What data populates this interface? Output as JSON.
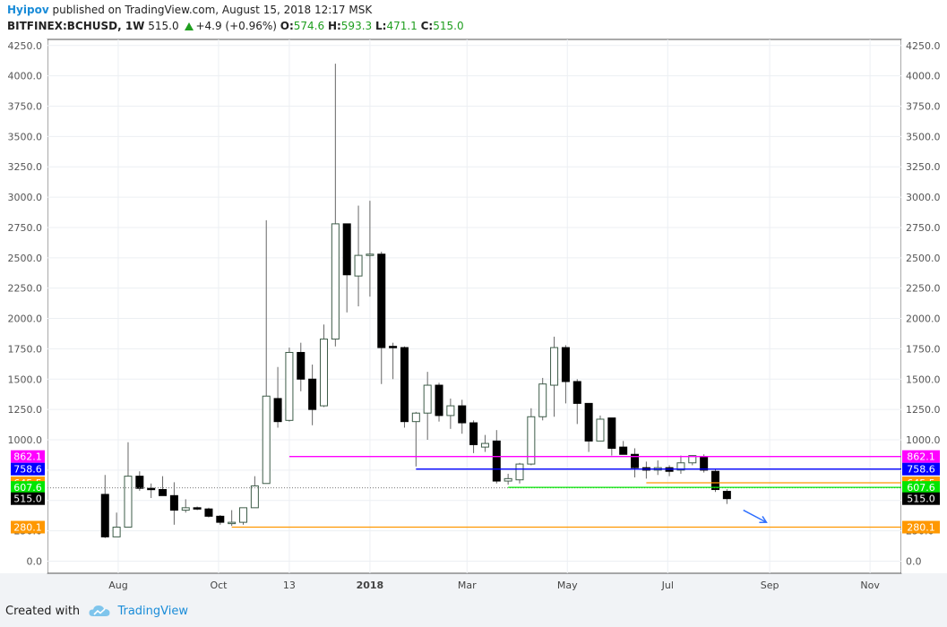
{
  "header": {
    "user": "Hyipov",
    "published": "published on TradingView.com, August 15, 2018 12:17 MSK",
    "symbol": "BITFINEX:BCHUSD, 1W",
    "last": "515.0",
    "change": "+4.9 (+0.96%)",
    "o_label": "O:",
    "o_value": "574.6",
    "h_label": "H:",
    "h_value": "593.3",
    "l_label": "L:",
    "l_value": "471.1",
    "c_label": "C:",
    "c_value": "515.0"
  },
  "footer": {
    "created_with": "Created with",
    "brand": "TradingView"
  },
  "colors": {
    "up_fill": "#ffffff",
    "down_fill": "#000000",
    "candle_border": "#3d5c48",
    "magenta": "#ff00ff",
    "blue": "#0000ff",
    "orange": "#ff9800",
    "green": "#00e600",
    "black_label": "#000000",
    "arrow": "#2f6fff"
  },
  "chart_data": {
    "type": "candlestick",
    "ylim": [
      -100,
      4300
    ],
    "yticks": [
      "0.0",
      "250.0",
      "500.0",
      "750.0",
      "1000.0",
      "1250.0",
      "1500.0",
      "1750.0",
      "2000.0",
      "2250.0",
      "2500.0",
      "2750.0",
      "3000.0",
      "3250.0",
      "3500.0",
      "3750.0",
      "4000.0",
      "4250.0"
    ],
    "ytick_values": [
      0,
      250,
      500,
      750,
      1000,
      1250,
      1500,
      1750,
      2000,
      2250,
      2500,
      2750,
      3000,
      3250,
      3500,
      3750,
      4000,
      4250
    ],
    "xticks": [
      {
        "label": "Aug",
        "date": "2017-08-01",
        "bold": false
      },
      {
        "label": "Oct",
        "date": "2017-10-01",
        "bold": false
      },
      {
        "label": "13",
        "date": "2017-11-13",
        "bold": false
      },
      {
        "label": "2018",
        "date": "2018-01-01",
        "bold": true
      },
      {
        "label": "Mar",
        "date": "2018-03-01",
        "bold": false
      },
      {
        "label": "May",
        "date": "2018-05-01",
        "bold": false
      },
      {
        "label": "Jul",
        "date": "2018-07-01",
        "bold": false
      },
      {
        "label": "Sep",
        "date": "2018-09-01",
        "bold": false
      },
      {
        "label": "Nov",
        "date": "2018-11-01",
        "bold": false
      }
    ],
    "x_range": [
      "2017-06-19",
      "2018-11-20"
    ],
    "candles": [
      {
        "date": "2017-07-24",
        "o": 550,
        "h": 710,
        "l": 190,
        "c": 200
      },
      {
        "date": "2017-07-31",
        "o": 200,
        "h": 400,
        "l": 200,
        "c": 280
      },
      {
        "date": "2017-08-07",
        "o": 280,
        "h": 980,
        "l": 280,
        "c": 700
      },
      {
        "date": "2017-08-14",
        "o": 700,
        "h": 740,
        "l": 580,
        "c": 600
      },
      {
        "date": "2017-08-21",
        "o": 600,
        "h": 640,
        "l": 520,
        "c": 590
      },
      {
        "date": "2017-08-28",
        "o": 590,
        "h": 700,
        "l": 560,
        "c": 540
      },
      {
        "date": "2017-09-04",
        "o": 540,
        "h": 650,
        "l": 300,
        "c": 420
      },
      {
        "date": "2017-09-11",
        "o": 420,
        "h": 510,
        "l": 400,
        "c": 440
      },
      {
        "date": "2017-09-18",
        "o": 440,
        "h": 450,
        "l": 420,
        "c": 430
      },
      {
        "date": "2017-09-25",
        "o": 430,
        "h": 440,
        "l": 360,
        "c": 370
      },
      {
        "date": "2017-10-02",
        "o": 370,
        "h": 380,
        "l": 300,
        "c": 320
      },
      {
        "date": "2017-10-09",
        "o": 310,
        "h": 420,
        "l": 290,
        "c": 320
      },
      {
        "date": "2017-10-16",
        "o": 320,
        "h": 440,
        "l": 300,
        "c": 440
      },
      {
        "date": "2017-10-23",
        "o": 440,
        "h": 700,
        "l": 440,
        "c": 620
      },
      {
        "date": "2017-10-30",
        "o": 640,
        "h": 2810,
        "l": 640,
        "c": 1360
      },
      {
        "date": "2017-11-06",
        "o": 1340,
        "h": 1600,
        "l": 1100,
        "c": 1150
      },
      {
        "date": "2017-11-13",
        "o": 1160,
        "h": 1760,
        "l": 1150,
        "c": 1720
      },
      {
        "date": "2017-11-20",
        "o": 1720,
        "h": 1800,
        "l": 1400,
        "c": 1500
      },
      {
        "date": "2017-11-27",
        "o": 1500,
        "h": 1620,
        "l": 1120,
        "c": 1250
      },
      {
        "date": "2017-12-04",
        "o": 1280,
        "h": 1950,
        "l": 1270,
        "c": 1830
      },
      {
        "date": "2017-12-11",
        "o": 1830,
        "h": 4100,
        "l": 1770,
        "c": 2780
      },
      {
        "date": "2017-12-18",
        "o": 2780,
        "h": 2780,
        "l": 2050,
        "c": 2360
      },
      {
        "date": "2017-12-25",
        "o": 2350,
        "h": 2930,
        "l": 2100,
        "c": 2520
      },
      {
        "date": "2018-01-01",
        "o": 2520,
        "h": 2970,
        "l": 2180,
        "c": 2530
      },
      {
        "date": "2018-01-08",
        "o": 2530,
        "h": 2550,
        "l": 1460,
        "c": 1760
      },
      {
        "date": "2018-01-15",
        "o": 1770,
        "h": 1800,
        "l": 1500,
        "c": 1760
      },
      {
        "date": "2018-01-22",
        "o": 1760,
        "h": 1770,
        "l": 1100,
        "c": 1150
      },
      {
        "date": "2018-01-29",
        "o": 1150,
        "h": 1230,
        "l": 780,
        "c": 1220
      },
      {
        "date": "2018-02-05",
        "o": 1220,
        "h": 1560,
        "l": 1000,
        "c": 1450
      },
      {
        "date": "2018-02-12",
        "o": 1450,
        "h": 1470,
        "l": 1150,
        "c": 1200
      },
      {
        "date": "2018-02-19",
        "o": 1200,
        "h": 1340,
        "l": 1090,
        "c": 1280
      },
      {
        "date": "2018-02-26",
        "o": 1280,
        "h": 1330,
        "l": 1050,
        "c": 1140
      },
      {
        "date": "2018-03-05",
        "o": 1140,
        "h": 1160,
        "l": 890,
        "c": 960
      },
      {
        "date": "2018-03-12",
        "o": 940,
        "h": 1040,
        "l": 900,
        "c": 970
      },
      {
        "date": "2018-03-19",
        "o": 990,
        "h": 1080,
        "l": 640,
        "c": 660
      },
      {
        "date": "2018-03-26",
        "o": 660,
        "h": 720,
        "l": 630,
        "c": 680
      },
      {
        "date": "2018-04-02",
        "o": 670,
        "h": 810,
        "l": 640,
        "c": 800
      },
      {
        "date": "2018-04-09",
        "o": 800,
        "h": 1260,
        "l": 790,
        "c": 1190
      },
      {
        "date": "2018-04-16",
        "o": 1190,
        "h": 1510,
        "l": 1160,
        "c": 1460
      },
      {
        "date": "2018-04-23",
        "o": 1450,
        "h": 1850,
        "l": 1190,
        "c": 1760
      },
      {
        "date": "2018-04-30",
        "o": 1760,
        "h": 1780,
        "l": 1300,
        "c": 1480
      },
      {
        "date": "2018-05-07",
        "o": 1480,
        "h": 1500,
        "l": 1130,
        "c": 1300
      },
      {
        "date": "2018-05-14",
        "o": 1300,
        "h": 1300,
        "l": 900,
        "c": 990
      },
      {
        "date": "2018-05-21",
        "o": 990,
        "h": 1200,
        "l": 990,
        "c": 1170
      },
      {
        "date": "2018-05-28",
        "o": 1180,
        "h": 1180,
        "l": 870,
        "c": 930
      },
      {
        "date": "2018-06-04",
        "o": 940,
        "h": 990,
        "l": 880,
        "c": 880
      },
      {
        "date": "2018-06-11",
        "o": 880,
        "h": 930,
        "l": 690,
        "c": 770
      },
      {
        "date": "2018-06-18",
        "o": 770,
        "h": 820,
        "l": 680,
        "c": 750
      },
      {
        "date": "2018-06-25",
        "o": 750,
        "h": 830,
        "l": 710,
        "c": 770
      },
      {
        "date": "2018-07-02",
        "o": 770,
        "h": 790,
        "l": 700,
        "c": 740
      },
      {
        "date": "2018-07-09",
        "o": 750,
        "h": 870,
        "l": 720,
        "c": 810
      },
      {
        "date": "2018-07-16",
        "o": 810,
        "h": 860,
        "l": 790,
        "c": 870
      },
      {
        "date": "2018-07-23",
        "o": 860,
        "h": 880,
        "l": 730,
        "c": 750
      },
      {
        "date": "2018-07-30",
        "o": 740,
        "h": 760,
        "l": 570,
        "c": 590
      },
      {
        "date": "2018-08-06",
        "o": 575,
        "h": 593,
        "l": 471,
        "c": 515
      }
    ],
    "levels": [
      {
        "value": 862.1,
        "label": "862.1",
        "color": "#ff00ff",
        "from": "2017-11-13"
      },
      {
        "value": 758.6,
        "label": "758.6",
        "color": "#0000ff",
        "from": "2018-01-29"
      },
      {
        "value": 645.5,
        "label": "645.5",
        "color": "#ff9800",
        "from": "2018-06-18"
      },
      {
        "value": 607.6,
        "label": "607.6",
        "color": "#00e600",
        "from": "2018-03-26"
      },
      {
        "value": 280.1,
        "label": "280.1",
        "color": "#ff9800",
        "from": "2017-10-09"
      }
    ],
    "last_price": {
      "value": 515.0,
      "label": "515.0"
    },
    "arrow": {
      "from_date": "2018-08-16",
      "from_value": 420,
      "to_date": "2018-08-30",
      "to_value": 320
    }
  }
}
